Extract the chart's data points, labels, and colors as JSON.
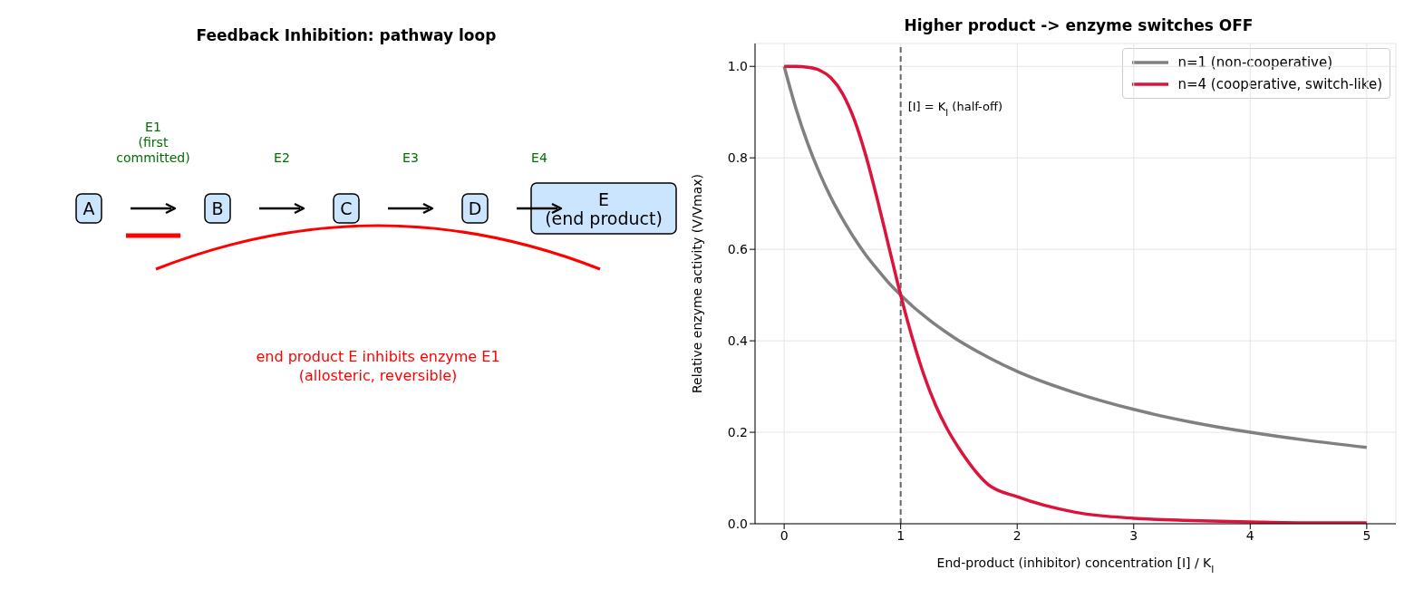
{
  "chart_data": [
    {
      "type": "other",
      "title": "Feedback Inhibition: pathway loop",
      "categories": [
        "A",
        "B",
        "C",
        "D",
        "E\n(end product)"
      ],
      "annotations": [
        "E1\n(first\ncommitted)",
        "E2",
        "E3",
        "E4",
        "end product E inhibits enzyme E1\n(allosteric, reversible)"
      ]
    },
    {
      "type": "line",
      "title": "Higher product -> enzyme switches OFF",
      "xlabel": "End-product (inhibitor) concentration  [I] / K$_{I}$",
      "ylabel": "Relative enzyme activity  (V/Vmax)",
      "x": [
        0,
        0.1,
        0.2,
        0.3,
        0.4,
        0.5,
        0.6,
        0.7,
        0.8,
        0.9,
        1,
        1.1,
        1.2,
        1.3,
        1.4,
        1.5,
        1.75,
        2,
        2.5,
        3,
        3.5,
        4,
        4.5,
        5
      ],
      "series": [
        {
          "name": "n=1 (non-cooperative)",
          "color": "#808080",
          "values": [
            1,
            0.909,
            0.833,
            0.769,
            0.714,
            0.667,
            0.625,
            0.588,
            0.556,
            0.526,
            0.5,
            0.476,
            0.455,
            0.435,
            0.417,
            0.4,
            0.364,
            0.333,
            0.286,
            0.25,
            0.222,
            0.2,
            0.182,
            0.167
          ]
        },
        {
          "name": "n=4 (cooperative, switch-like)",
          "color": "#dc143c",
          "values": [
            1,
            1,
            0.998,
            0.992,
            0.975,
            0.941,
            0.885,
            0.806,
            0.709,
            0.604,
            0.5,
            0.406,
            0.325,
            0.259,
            0.207,
            0.165,
            0.086,
            0.059,
            0.025,
            0.012,
            0.007,
            0.004,
            0.002,
            0.002
          ]
        }
      ],
      "xlim": [
        -0.25,
        5.25
      ],
      "xticks": [
        0,
        1,
        2,
        3,
        4,
        5
      ],
      "ylim": [
        0,
        1.05
      ],
      "yticks": [
        {
          "value": 0,
          "label": "0.0"
        },
        {
          "value": 0.2,
          "label": "0.2"
        },
        {
          "value": 0.4,
          "label": "0.4"
        },
        {
          "value": 0.6,
          "label": "0.6"
        },
        {
          "value": 0.8,
          "label": "0.8"
        },
        {
          "value": 1,
          "label": "1.0"
        }
      ],
      "ref_lines": [
        {
          "axis": "x",
          "value": 1,
          "label": "[I] = K$_{I}$ (half-off)",
          "color": "#666666",
          "line_style": "dashed"
        }
      ],
      "grid": true,
      "legend": "top right",
      "marker": "none",
      "line_style": "solid"
    }
  ]
}
